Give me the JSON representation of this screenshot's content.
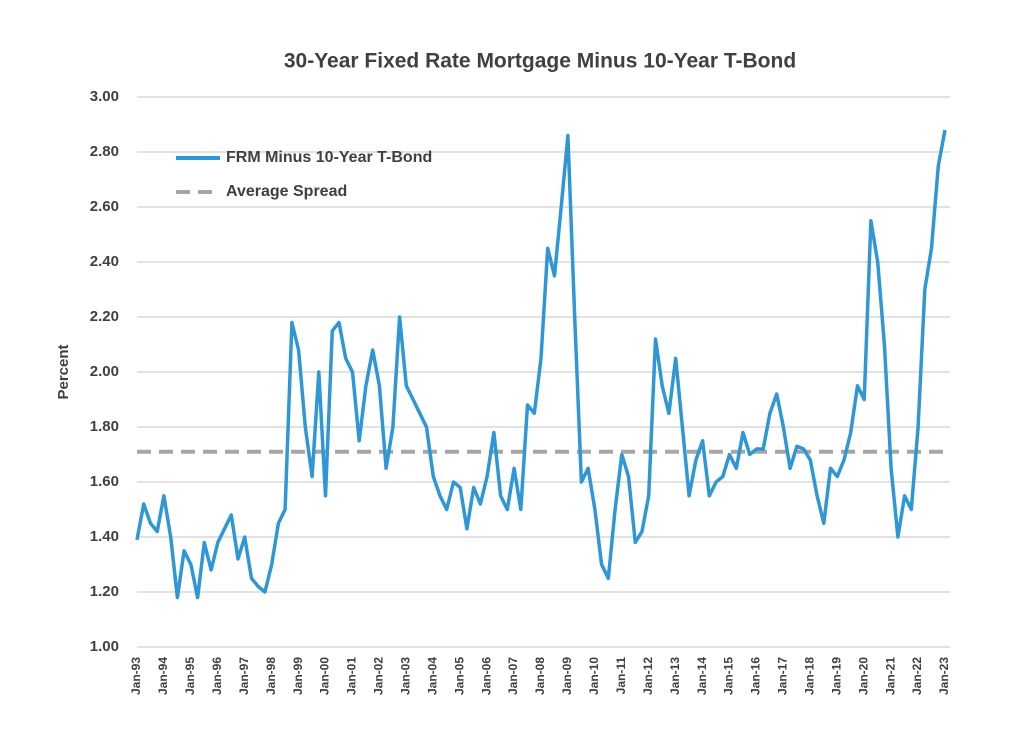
{
  "chart_data": {
    "type": "line",
    "title": "30-Year Fixed Rate Mortgage  Minus 10-Year T-Bond",
    "y_label": "Percent",
    "categories": [
      "Jan-93",
      null,
      null,
      null,
      "Jan-94",
      null,
      null,
      null,
      "Jan-95",
      null,
      null,
      null,
      "Jan-96",
      null,
      null,
      null,
      "Jan-97",
      null,
      null,
      null,
      "Jan-98",
      null,
      null,
      null,
      "Jan-99",
      null,
      null,
      null,
      "Jan-00",
      null,
      null,
      null,
      "Jan-01",
      null,
      null,
      null,
      "Jan-02",
      null,
      null,
      null,
      "Jan-03",
      null,
      null,
      null,
      "Jan-04",
      null,
      null,
      null,
      "Jan-05",
      null,
      null,
      null,
      "Jan-06",
      null,
      null,
      null,
      "Jan-07",
      null,
      null,
      null,
      "Jan-08",
      null,
      null,
      null,
      "Jan-09",
      null,
      null,
      null,
      "Jan-10",
      null,
      null,
      null,
      "Jan-11",
      null,
      null,
      null,
      "Jan-12",
      null,
      null,
      null,
      "Jan-13",
      null,
      null,
      null,
      "Jan-14",
      null,
      null,
      null,
      "Jan-15",
      null,
      null,
      null,
      "Jan-16",
      null,
      null,
      null,
      "Jan-17",
      null,
      null,
      null,
      "Jan-18",
      null,
      null,
      null,
      "Jan-19",
      null,
      null,
      null,
      "Jan-20",
      null,
      null,
      null,
      "Jan-21",
      null,
      null,
      null,
      "Jan-22",
      null,
      null,
      null,
      "Jan-23"
    ],
    "series": [
      {
        "name": "FRM Minus 10-Year T-Bond",
        "color": "#2f97d6",
        "values": [
          1.39,
          1.52,
          1.45,
          1.42,
          1.55,
          1.4,
          1.18,
          1.35,
          1.3,
          1.18,
          1.38,
          1.28,
          1.38,
          1.43,
          1.48,
          1.32,
          1.4,
          1.25,
          1.22,
          1.2,
          1.3,
          1.45,
          1.5,
          2.18,
          2.08,
          1.8,
          1.62,
          2.0,
          1.55,
          2.15,
          2.18,
          2.05,
          2.0,
          1.75,
          1.95,
          2.08,
          1.95,
          1.65,
          1.8,
          2.2,
          1.95,
          1.9,
          1.85,
          1.8,
          1.62,
          1.55,
          1.5,
          1.6,
          1.58,
          1.43,
          1.58,
          1.52,
          1.62,
          1.78,
          1.55,
          1.5,
          1.65,
          1.5,
          1.88,
          1.85,
          2.05,
          2.45,
          2.35,
          2.6,
          2.86,
          2.2,
          1.6,
          1.65,
          1.5,
          1.3,
          1.25,
          1.5,
          1.7,
          1.62,
          1.38,
          1.42,
          1.55,
          2.12,
          1.95,
          1.85,
          2.05,
          1.8,
          1.55,
          1.68,
          1.75,
          1.55,
          1.6,
          1.62,
          1.7,
          1.65,
          1.78,
          1.7,
          1.72,
          1.72,
          1.85,
          1.92,
          1.8,
          1.65,
          1.73,
          1.72,
          1.68,
          1.55,
          1.45,
          1.65,
          1.62,
          1.68,
          1.78,
          1.95,
          1.9,
          2.55,
          2.4,
          2.1,
          1.65,
          1.4,
          1.55,
          1.5,
          1.8,
          2.3,
          2.45,
          2.75,
          2.88
        ]
      }
    ],
    "reference_lines": [
      {
        "name": "Average Spread",
        "value": 1.71,
        "color": "#a6a6a6",
        "dashed": true
      }
    ],
    "ylim": [
      1,
      3
    ],
    "yticks": [
      {
        "value": 1,
        "label": "1.00"
      },
      {
        "value": 1.2,
        "label": "1.20"
      },
      {
        "value": 1.4,
        "label": "1.40"
      },
      {
        "value": 1.6,
        "label": "1.60"
      },
      {
        "value": 1.8,
        "label": "1.80"
      },
      {
        "value": 2,
        "label": "2.00"
      },
      {
        "value": 2.2,
        "label": "2.20"
      },
      {
        "value": 2.4,
        "label": "2.40"
      },
      {
        "value": 2.6,
        "label": "2.60"
      },
      {
        "value": 2.8,
        "label": "2.80"
      },
      {
        "value": 3,
        "label": "3.00"
      }
    ],
    "grid": true,
    "legend": "upper-left"
  }
}
